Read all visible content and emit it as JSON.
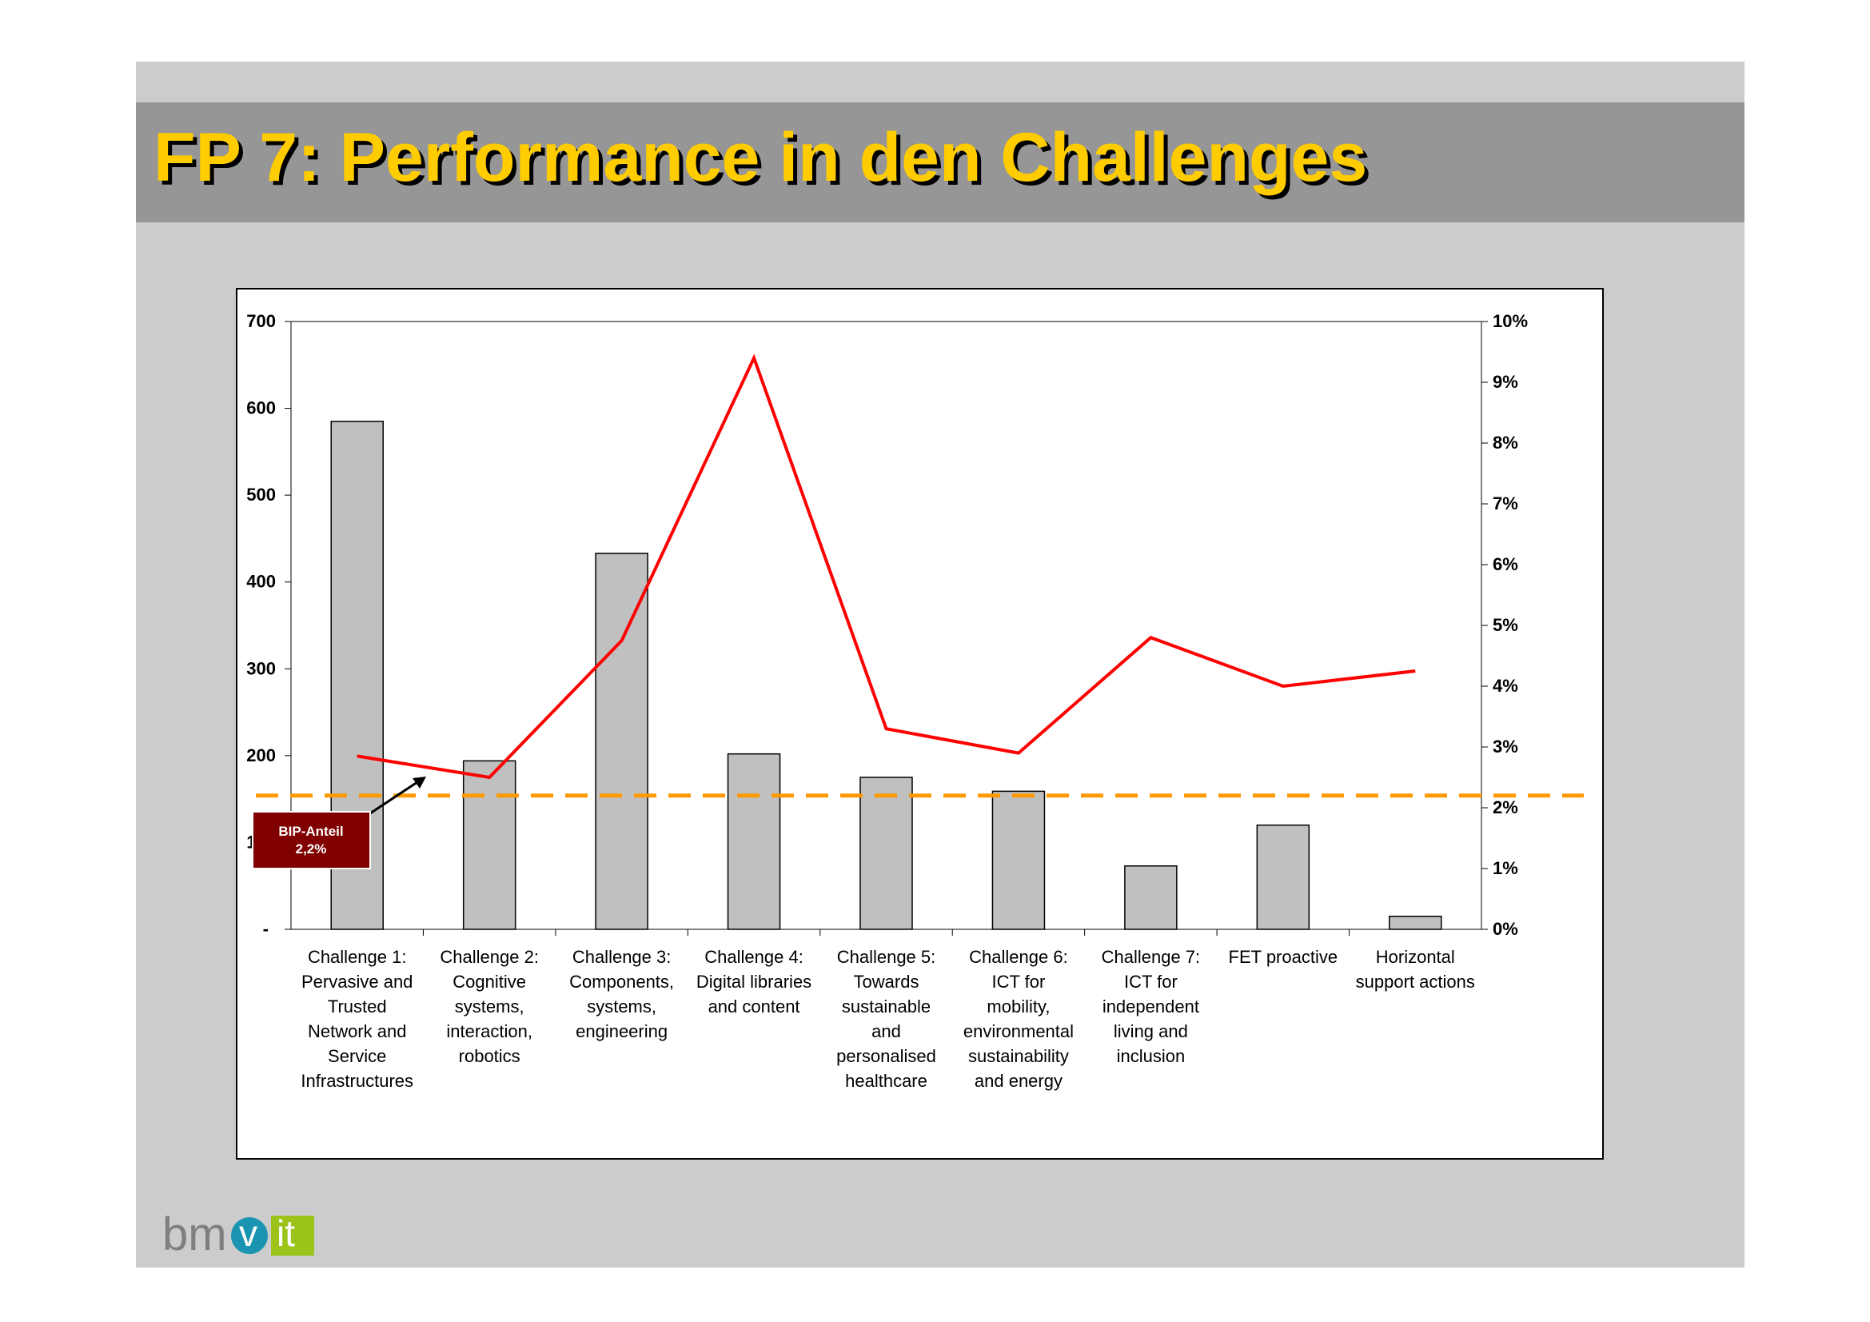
{
  "title": "FP 7: Performance in den Challenges",
  "logo": {
    "text_bm": "bm",
    "text_v": "v",
    "text_it": "it"
  },
  "annotation": {
    "line1": "BIP-Anteil",
    "line2": "2,2%"
  },
  "colors": {
    "title": "#ffcc00",
    "bar": "#c0c0c0",
    "line": "#ff0000",
    "reference": "#ff9900",
    "callout": "#800000"
  },
  "chart_data": {
    "type": "bar",
    "categories": [
      [
        "Challenge 1:",
        "Pervasive and",
        "Trusted",
        "Network and",
        "Service",
        "Infrastructures"
      ],
      [
        "Challenge 2:",
        "Cognitive",
        "systems,",
        "interaction,",
        "robotics"
      ],
      [
        "Challenge 3:",
        "Components,",
        "systems,",
        "engineering"
      ],
      [
        "Challenge 4:",
        "Digital libraries",
        "and content"
      ],
      [
        "Challenge 5:",
        "Towards",
        "sustainable",
        "and",
        "personalised",
        "healthcare"
      ],
      [
        "Challenge 6:",
        "ICT for",
        "mobility,",
        "environmental",
        "sustainability",
        "and energy"
      ],
      [
        "Challenge 7:",
        "ICT for",
        "independent",
        "living and",
        "inclusion"
      ],
      [
        "FET proactive"
      ],
      [
        "Horizontal",
        "support actions"
      ]
    ],
    "series": [
      {
        "type": "bar",
        "axis": "left",
        "values": [
          585,
          194,
          433,
          202,
          175,
          159,
          73,
          120,
          15
        ]
      },
      {
        "type": "line",
        "axis": "right",
        "values": [
          0.0285,
          0.025,
          0.0475,
          0.094,
          0.033,
          0.029,
          0.048,
          0.04,
          0.0425
        ]
      }
    ],
    "reference_line": {
      "axis": "right",
      "value": 0.022
    },
    "y_left": {
      "min": 0,
      "max": 700,
      "ticks": [
        "-",
        "100",
        "200",
        "300",
        "400",
        "500",
        "600",
        "700"
      ]
    },
    "y_right": {
      "min": 0,
      "max": 0.1,
      "ticks": [
        "0%",
        "1%",
        "2%",
        "3%",
        "4%",
        "5%",
        "6%",
        "7%",
        "8%",
        "9%",
        "10%"
      ]
    },
    "grid": false
  }
}
